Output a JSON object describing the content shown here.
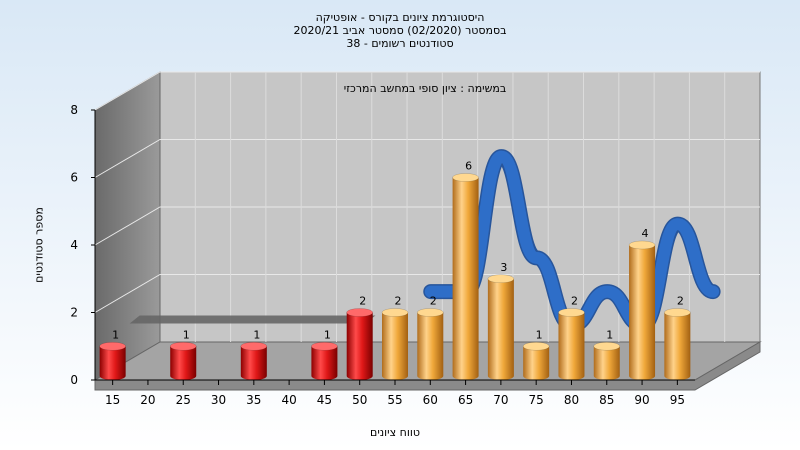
{
  "header": {
    "line1": "היסטוגרמת ציונים בקורס - אופטיקה",
    "line2": "בסמסטר  (02/2020)  סמסטר אביב 2020/21",
    "line3": "סטודנטים רשומים - 38"
  },
  "chart_data": {
    "type": "bar",
    "title": "היסטוגרמת ציונים בקורס - אופטיקה",
    "subtitle": "במשימה : ציון סופי במחשב המרכזי",
    "xlabel": "טווח ציונים",
    "ylabel": "מספר סטודנטים",
    "ylim": [
      0,
      8
    ],
    "yticks": [
      0,
      2,
      4,
      6,
      8
    ],
    "xticks": [
      "15",
      "20",
      "25",
      "30",
      "35",
      "40",
      "45",
      "50",
      "55",
      "60",
      "65",
      "70",
      "75",
      "80",
      "85",
      "90",
      "95"
    ],
    "bars": [
      {
        "x": 15,
        "value": 1,
        "group": "fail"
      },
      {
        "x": 25,
        "value": 1,
        "group": "fail"
      },
      {
        "x": 35,
        "value": 1,
        "group": "fail"
      },
      {
        "x": 45,
        "value": 1,
        "group": "fail"
      },
      {
        "x": 50,
        "value": 2,
        "group": "fail"
      },
      {
        "x": 55,
        "value": 2,
        "group": "pass"
      },
      {
        "x": 60,
        "value": 2,
        "group": "pass"
      },
      {
        "x": 65,
        "value": 6,
        "group": "pass"
      },
      {
        "x": 70,
        "value": 3,
        "group": "pass"
      },
      {
        "x": 75,
        "value": 1,
        "group": "pass"
      },
      {
        "x": 80,
        "value": 2,
        "group": "pass"
      },
      {
        "x": 85,
        "value": 1,
        "group": "pass"
      },
      {
        "x": 90,
        "value": 4,
        "group": "pass"
      },
      {
        "x": 95,
        "value": 2,
        "group": "pass"
      }
    ],
    "colors": {
      "fail": "#e01818",
      "pass": "#f0a83a",
      "curve": "#2e6ec8",
      "ribbon": "#666666"
    },
    "grid": true
  }
}
